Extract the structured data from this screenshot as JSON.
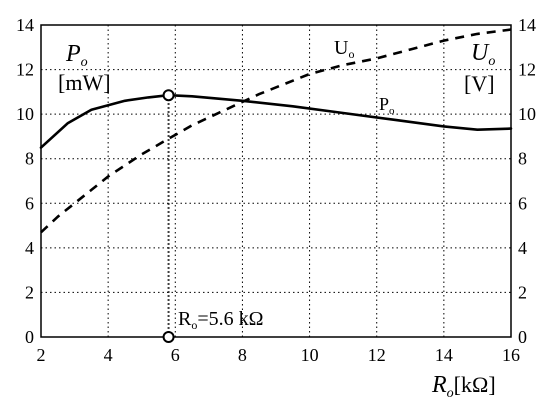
{
  "chart_data": {
    "type": "line",
    "xlim": [
      2,
      16
    ],
    "ylim_left": [
      0,
      14
    ],
    "ylim_right": [
      0,
      14
    ],
    "grid": true,
    "x_ticks": [
      "2",
      "4",
      "6",
      "8",
      "10",
      "12",
      "14",
      "16"
    ],
    "y_left_ticks": [
      "0",
      "2",
      "4",
      "6",
      "8",
      "10",
      "12",
      "14"
    ],
    "y_right_ticks": [
      "0",
      "2",
      "4",
      "6",
      "8",
      "10",
      "12",
      "14"
    ],
    "xlabel_main": "R",
    "xlabel_sub": "o",
    "xlabel_unit": "[kΩ]",
    "ylabel_left_main": "P",
    "ylabel_left_sub": "o",
    "ylabel_left_unit": "[mW]",
    "ylabel_right_main": "U",
    "ylabel_right_sub": "o",
    "ylabel_right_unit": "[V]",
    "series": [
      {
        "name_main": "P",
        "name_sub": "o",
        "style": "solid",
        "axis": "left",
        "x": [
          2,
          2.8,
          3.5,
          4.5,
          5.2,
          5.8,
          6.5,
          8,
          9.5,
          11,
          12.5,
          14,
          15,
          16
        ],
        "y": [
          8.5,
          9.6,
          10.2,
          10.6,
          10.75,
          10.85,
          10.8,
          10.6,
          10.35,
          10.05,
          9.75,
          9.45,
          9.3,
          9.35
        ]
      },
      {
        "name_main": "U",
        "name_sub": "o",
        "style": "dashed",
        "axis": "right",
        "x": [
          2,
          2.5,
          3,
          3.5,
          4,
          4.5,
          5,
          5.8,
          6.5,
          7.5,
          8.5,
          10,
          11,
          12,
          13,
          14,
          15,
          16
        ],
        "y": [
          4.7,
          5.4,
          6.0,
          6.6,
          7.2,
          7.7,
          8.2,
          8.9,
          9.5,
          10.2,
          10.9,
          11.8,
          12.2,
          12.5,
          12.9,
          13.3,
          13.6,
          13.8
        ]
      }
    ],
    "annotation": {
      "x": 5.8,
      "y": 10.85,
      "label_main": "R",
      "label_sub": "o",
      "label_value": "=5.6 kΩ"
    }
  }
}
